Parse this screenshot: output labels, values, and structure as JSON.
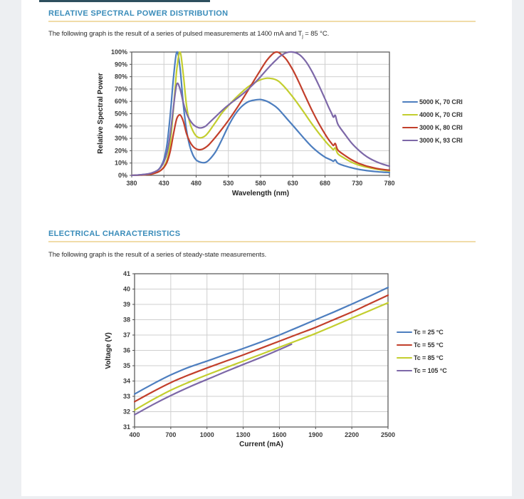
{
  "sections": [
    {
      "heading": "RELATIVE SPECTRAL POWER DISTRIBUTION",
      "desc_prefix": "The following graph is the result of a series of pulsed measurements at 1400 mA and T",
      "desc_sub": "j",
      "desc_suffix": " = 85 °C."
    },
    {
      "heading": "ELECTRICAL CHARACTERISTICS",
      "desc_prefix": "The following graph is the result of a series of steady-state measurements.",
      "desc_sub": "",
      "desc_suffix": ""
    }
  ],
  "style_colors": {
    "heading_blue": "#3a8cba",
    "divider_gold": "#f1dca9",
    "grid": "#cfcfcf",
    "axis_border": "#525252",
    "tick_text": "#3c3c3c"
  },
  "chart_data": [
    {
      "type": "line",
      "title": "",
      "xlabel": "Wavelength (nm)",
      "ylabel": "Relative Spectral Power",
      "xlim": [
        380,
        780
      ],
      "ylim": [
        0,
        100
      ],
      "xticks": [
        380,
        430,
        480,
        530,
        580,
        630,
        680,
        730,
        780
      ],
      "yticks": [
        0,
        10,
        20,
        30,
        40,
        50,
        60,
        70,
        80,
        90,
        100
      ],
      "ytick_labels": [
        "0%",
        "10%",
        "20%",
        "30%",
        "40%",
        "50%",
        "60%",
        "70%",
        "80%",
        "90%",
        "100%"
      ],
      "grid": true,
      "legend_position": "right",
      "x": [
        380,
        390,
        400,
        410,
        420,
        425,
        430,
        435,
        440,
        445,
        450,
        455,
        460,
        465,
        470,
        475,
        480,
        485,
        490,
        495,
        500,
        510,
        520,
        530,
        540,
        550,
        560,
        570,
        580,
        590,
        600,
        605,
        610,
        620,
        630,
        640,
        650,
        660,
        670,
        680,
        685,
        690,
        693,
        696,
        700,
        710,
        720,
        730,
        740,
        750,
        760,
        770,
        780
      ],
      "series": [
        {
          "name": "5000 K, 70 CRI",
          "color": "#4d7ebf",
          "y": [
            0,
            0.3,
            0.8,
            1.5,
            4,
            7,
            13,
            26,
            50,
            80,
            100,
            87,
            58,
            37,
            24,
            16.5,
            12.5,
            11,
            10.3,
            10.6,
            12.5,
            19,
            29,
            40,
            49,
            55.5,
            59.5,
            61,
            61.5,
            60,
            57,
            55,
            52.5,
            46.5,
            40.5,
            34.5,
            28.5,
            23,
            18.5,
            14.8,
            13.5,
            12.3,
            11.4,
            12.6,
            9.8,
            7.8,
            6.3,
            5.1,
            4.2,
            3.5,
            3,
            2.6,
            2.3
          ]
        },
        {
          "name": "4000 K, 70 CRI",
          "color": "#c3ce2f",
          "y": [
            0,
            0.2,
            0.5,
            1,
            2.5,
            4,
            7,
            13,
            27,
            55,
            86,
            100,
            82,
            57,
            43,
            36,
            32,
            30.5,
            30.8,
            32.5,
            35.5,
            43,
            50.5,
            56.5,
            62,
            67,
            71.5,
            75,
            77.5,
            78.8,
            78.2,
            77.2,
            75.5,
            70,
            63.5,
            56.5,
            49,
            41.5,
            34.5,
            28,
            25,
            22.3,
            20.8,
            22.2,
            17.5,
            14,
            11,
            8.8,
            7.2,
            6,
            5,
            4.2,
            3.6
          ]
        },
        {
          "name": "3000 K, 80 CRI",
          "color": "#c23f2b",
          "y": [
            0,
            0.2,
            0.5,
            1,
            2.5,
            4,
            6.5,
            11,
            20,
            34,
            46,
            49,
            44,
            34,
            27.5,
            23.5,
            21.5,
            20.8,
            21.3,
            22.8,
            25,
            31,
            37.5,
            44.5,
            52,
            60,
            68.5,
            77,
            85.5,
            93.5,
            99,
            100,
            99,
            94,
            85.5,
            75,
            63.5,
            52.5,
            42.5,
            33.5,
            29.5,
            26,
            24.2,
            25.8,
            20.5,
            16.5,
            13,
            10.3,
            8.3,
            6.8,
            5.6,
            4.8,
            4.2
          ]
        },
        {
          "name": "3000 K, 93 CRI",
          "color": "#7d68a8",
          "y": [
            0,
            0.3,
            0.8,
            1.8,
            4,
            6.5,
            11,
            19,
            34,
            56,
            74,
            70,
            59,
            50.5,
            45,
            41.5,
            39.5,
            38.5,
            38.8,
            40,
            42.5,
            47.5,
            52.5,
            57,
            61,
            65,
            69.5,
            74.5,
            80,
            86,
            91.5,
            94,
            96.5,
            99.5,
            100,
            98,
            92.5,
            84,
            73.5,
            62,
            56,
            50.5,
            47.2,
            48.6,
            41.5,
            34,
            27,
            21.5,
            17,
            13.5,
            11,
            9,
            7.5
          ]
        }
      ]
    },
    {
      "type": "line",
      "title": "",
      "xlabel": "Current (mA)",
      "ylabel": "Voltage (V)",
      "xlim": [
        400,
        2500
      ],
      "ylim": [
        31,
        41
      ],
      "xticks": [
        400,
        700,
        1000,
        1300,
        1600,
        1900,
        2200,
        2500
      ],
      "yticks": [
        31,
        32,
        33,
        34,
        35,
        36,
        37,
        38,
        39,
        40,
        41
      ],
      "ytick_labels": [
        "31",
        "32",
        "33",
        "34",
        "35",
        "36",
        "37",
        "38",
        "39",
        "40",
        "41"
      ],
      "grid": true,
      "legend_position": "right",
      "series": [
        {
          "name": "Tc = 25 °C",
          "color": "#4d7ebf",
          "x": [
            400,
            550,
            700,
            850,
            1000,
            1150,
            1300,
            1450,
            1600,
            1750,
            1900,
            2050,
            2200,
            2350,
            2500
          ],
          "y": [
            33.15,
            33.8,
            34.4,
            34.9,
            35.3,
            35.72,
            36.12,
            36.55,
            37.0,
            37.5,
            38.0,
            38.5,
            39.02,
            39.55,
            40.1
          ]
        },
        {
          "name": "Tc = 55 °C",
          "color": "#c23f2b",
          "x": [
            400,
            550,
            700,
            850,
            1000,
            1150,
            1300,
            1450,
            1600,
            1750,
            1900,
            2050,
            2200,
            2350,
            2500
          ],
          "y": [
            32.65,
            33.3,
            33.9,
            34.4,
            34.85,
            35.28,
            35.7,
            36.15,
            36.6,
            37.05,
            37.5,
            38.0,
            38.5,
            39.05,
            39.6
          ]
        },
        {
          "name": "Tc = 85 °C",
          "color": "#c3ce2f",
          "x": [
            400,
            550,
            700,
            850,
            1000,
            1150,
            1300,
            1450,
            1600,
            1750,
            1900,
            2050,
            2200,
            2350,
            2500
          ],
          "y": [
            32.1,
            32.78,
            33.4,
            33.92,
            34.4,
            34.85,
            35.3,
            35.75,
            36.2,
            36.65,
            37.1,
            37.6,
            38.1,
            38.6,
            39.1
          ]
        },
        {
          "name": "Tc = 105 °C",
          "color": "#7d68a8",
          "x": [
            400,
            550,
            700,
            850,
            1000,
            1150,
            1300,
            1450,
            1600,
            1700
          ],
          "y": [
            31.8,
            32.45,
            33.05,
            33.6,
            34.1,
            34.6,
            35.08,
            35.55,
            36.05,
            36.4
          ]
        }
      ]
    }
  ]
}
